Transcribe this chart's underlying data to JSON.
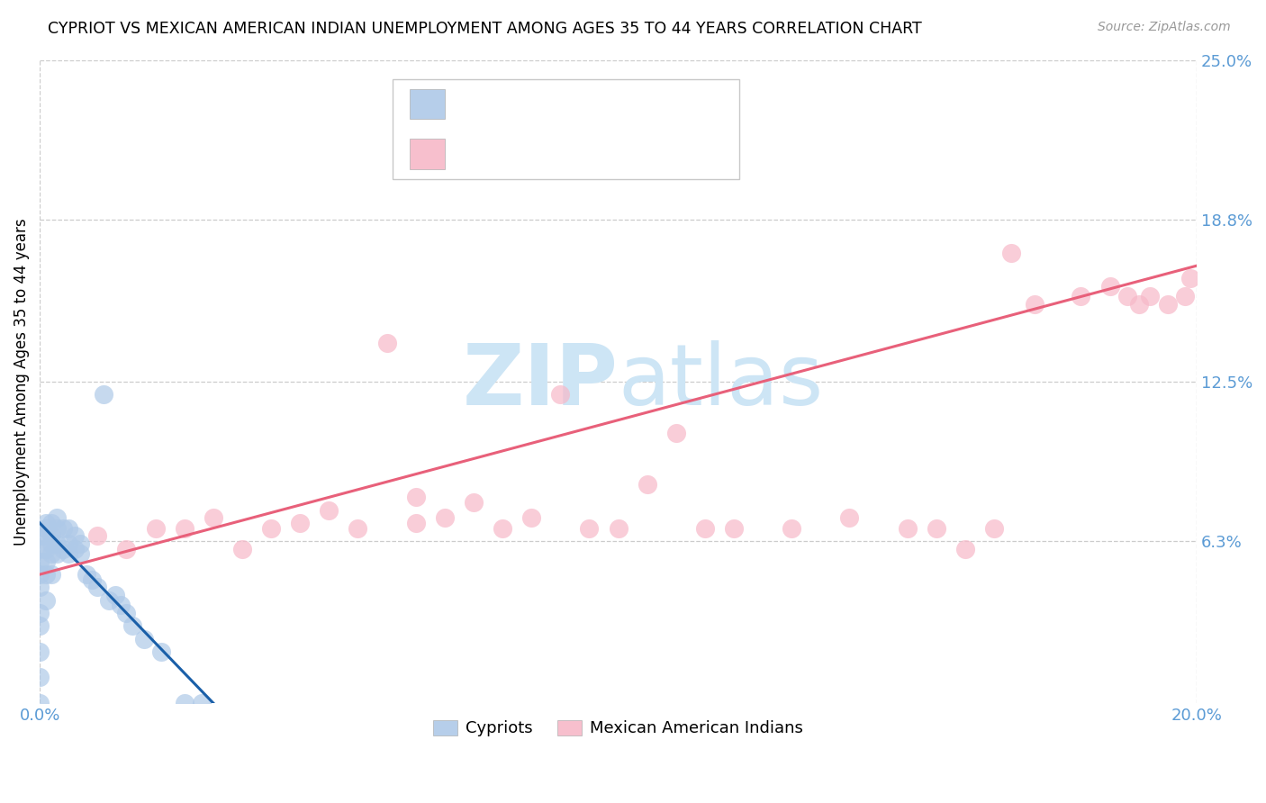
{
  "title": "CYPRIOT VS MEXICAN AMERICAN INDIAN UNEMPLOYMENT AMONG AGES 35 TO 44 YEARS CORRELATION CHART",
  "source": "Source: ZipAtlas.com",
  "ylabel": "Unemployment Among Ages 35 to 44 years",
  "xlim": [
    0.0,
    0.2
  ],
  "ylim": [
    0.0,
    0.25
  ],
  "yticks": [
    0.0,
    0.063,
    0.125,
    0.188,
    0.25
  ],
  "ytick_labels": [
    "",
    "6.3%",
    "12.5%",
    "18.8%",
    "25.0%"
  ],
  "xticks": [
    0.0,
    0.2
  ],
  "xtick_labels": [
    "0.0%",
    "20.0%"
  ],
  "cypriot_color": "#aec9e8",
  "mexican_color": "#f7b8c8",
  "trendline_cypriot_color": "#1a5fa8",
  "trendline_mexican_color": "#e8607a",
  "tick_color": "#5b9bd5",
  "grid_color": "#cccccc",
  "watermark_color": "#cde5f5",
  "legend_box_color": "#e8e8e8",
  "cypriot_x": [
    0.0,
    0.0,
    0.0,
    0.0,
    0.0,
    0.0,
    0.0,
    0.0,
    0.0,
    0.0,
    0.001,
    0.001,
    0.001,
    0.001,
    0.001,
    0.001,
    0.001,
    0.002,
    0.002,
    0.002,
    0.002,
    0.002,
    0.003,
    0.003,
    0.003,
    0.003,
    0.004,
    0.004,
    0.005,
    0.005,
    0.005,
    0.006,
    0.006,
    0.007,
    0.007,
    0.008,
    0.009,
    0.01,
    0.011,
    0.012,
    0.013,
    0.014,
    0.015,
    0.016,
    0.018,
    0.021,
    0.025,
    0.028
  ],
  "cypriot_y": [
    0.0,
    0.01,
    0.02,
    0.03,
    0.035,
    0.045,
    0.05,
    0.055,
    0.06,
    0.065,
    0.04,
    0.05,
    0.055,
    0.06,
    0.065,
    0.068,
    0.07,
    0.05,
    0.058,
    0.062,
    0.065,
    0.07,
    0.058,
    0.062,
    0.068,
    0.072,
    0.06,
    0.068,
    0.058,
    0.062,
    0.068,
    0.06,
    0.065,
    0.058,
    0.062,
    0.05,
    0.048,
    0.045,
    0.12,
    0.04,
    0.042,
    0.038,
    0.035,
    0.03,
    0.025,
    0.02,
    0.0,
    0.0
  ],
  "mexican_x": [
    0.01,
    0.015,
    0.02,
    0.025,
    0.03,
    0.035,
    0.04,
    0.045,
    0.05,
    0.055,
    0.06,
    0.065,
    0.065,
    0.07,
    0.075,
    0.08,
    0.085,
    0.09,
    0.095,
    0.1,
    0.105,
    0.11,
    0.115,
    0.12,
    0.13,
    0.14,
    0.15,
    0.155,
    0.16,
    0.165,
    0.168,
    0.172,
    0.18,
    0.185,
    0.188,
    0.19,
    0.192,
    0.195,
    0.198,
    0.199
  ],
  "mexican_y": [
    0.065,
    0.06,
    0.068,
    0.068,
    0.072,
    0.06,
    0.068,
    0.07,
    0.075,
    0.068,
    0.14,
    0.07,
    0.08,
    0.072,
    0.078,
    0.068,
    0.072,
    0.12,
    0.068,
    0.068,
    0.085,
    0.105,
    0.068,
    0.068,
    0.068,
    0.072,
    0.068,
    0.068,
    0.06,
    0.068,
    0.175,
    0.155,
    0.158,
    0.162,
    0.158,
    0.155,
    0.158,
    0.155,
    0.158,
    0.165
  ],
  "cypriot_trendline_x": [
    0.0,
    0.03
  ],
  "cypriot_trendline_y": [
    0.07,
    0.0
  ],
  "mexican_trendline_x": [
    0.0,
    0.2
  ],
  "mexican_trendline_y": [
    0.05,
    0.17
  ]
}
